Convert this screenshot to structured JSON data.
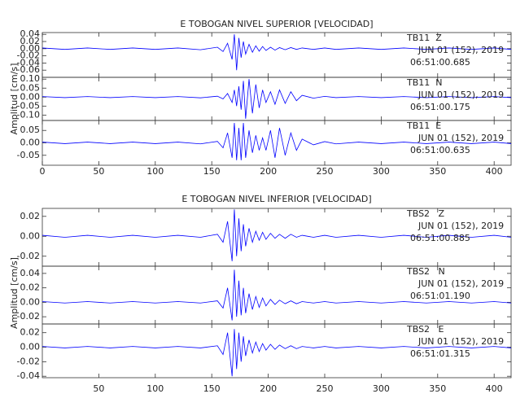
{
  "chart_data": [
    {
      "type": "line",
      "title": "E TOBOGAN NIVEL SUPERIOR [VELOCIDAD]",
      "ylabel": "Amplitud [cm/s]",
      "xlim": [
        0,
        415
      ],
      "xticks": [
        0,
        50,
        100,
        150,
        200,
        250,
        300,
        350,
        400
      ],
      "x": [
        0,
        20,
        40,
        60,
        80,
        100,
        120,
        140,
        155,
        160,
        164,
        168,
        170,
        172,
        174,
        176,
        178,
        180,
        183,
        186,
        189,
        192,
        195,
        198,
        202,
        206,
        210,
        215,
        220,
        225,
        230,
        240,
        250,
        260,
        280,
        300,
        320,
        340,
        360,
        380,
        400,
        415
      ],
      "series": [
        {
          "name": "TB11  Z",
          "date": "JUN 01 (152), 2019",
          "time": "06:51:00.685",
          "color": "#0000ff",
          "ylim": [
            -0.08,
            0.045
          ],
          "yticks": [
            0.04,
            0.02,
            {
              "value": 0,
              "label": "0.00"
            },
            -0.02,
            -0.04,
            -0.06
          ],
          "values": [
            0.002,
            -0.002,
            0.002,
            -0.002,
            0.002,
            -0.002,
            0.002,
            -0.003,
            0.004,
            -0.008,
            0.015,
            -0.03,
            0.04,
            -0.06,
            0.03,
            -0.025,
            0.02,
            -0.015,
            0.012,
            -0.01,
            0.008,
            -0.007,
            0.006,
            -0.005,
            0.004,
            -0.004,
            0.003,
            -0.003,
            0.003,
            -0.002,
            0.002,
            -0.002,
            0.002,
            -0.002,
            0.002,
            -0.002,
            0.002,
            -0.002,
            0.002,
            -0.002,
            0.002,
            -0.002
          ]
        },
        {
          "name": "TB11  N",
          "date": "JUN 01 (152), 2019",
          "time": "06:51:00.175",
          "color": "#0000ff",
          "ylim": [
            -0.13,
            0.11
          ],
          "yticks": [
            {
              "value": 0.1,
              "label": "0.10"
            },
            0.05,
            {
              "value": 0,
              "label": "0.00"
            },
            -0.05,
            {
              "value": -0.1,
              "label": "-0.10"
            }
          ],
          "values": [
            0.003,
            -0.003,
            0.003,
            -0.003,
            0.003,
            -0.003,
            0.003,
            -0.004,
            0.005,
            -0.01,
            0.02,
            -0.03,
            0.04,
            -0.05,
            0.06,
            -0.07,
            0.09,
            -0.12,
            0.1,
            -0.09,
            0.07,
            -0.06,
            0.04,
            -0.03,
            0.03,
            -0.04,
            0.04,
            -0.035,
            0.03,
            -0.02,
            0.01,
            -0.006,
            0.004,
            -0.003,
            0.003,
            -0.003,
            0.003,
            -0.003,
            0.003,
            -0.003,
            0.003,
            -0.003
          ]
        },
        {
          "name": "TB11  E",
          "date": "JUN 01 (152), 2019",
          "time": "06:51:00.635",
          "color": "#0000ff",
          "ylim": [
            -0.09,
            0.09
          ],
          "yticks": [
            0.05,
            {
              "value": 0,
              "label": "0.00"
            },
            -0.05
          ],
          "values": [
            0.003,
            -0.003,
            0.003,
            -0.003,
            0.003,
            -0.003,
            0.003,
            -0.004,
            0.006,
            -0.02,
            0.04,
            -0.06,
            0.08,
            -0.07,
            0.06,
            -0.07,
            0.08,
            -0.06,
            0.05,
            -0.04,
            0.03,
            -0.03,
            0.02,
            -0.03,
            0.05,
            -0.06,
            0.06,
            -0.05,
            0.04,
            -0.03,
            0.015,
            -0.008,
            0.005,
            -0.004,
            0.003,
            -0.003,
            0.003,
            -0.003,
            0.003,
            -0.003,
            0.003,
            -0.003
          ]
        }
      ]
    },
    {
      "type": "line",
      "title": "E TOBOGAN NIVEL INFERIOR [VELOCIDAD]",
      "ylabel": "Amplitud [cm/s]",
      "xlim": [
        0,
        415
      ],
      "xticks": [
        50,
        100,
        150,
        200,
        250,
        300,
        350,
        400
      ],
      "x": [
        0,
        20,
        40,
        60,
        80,
        100,
        120,
        140,
        155,
        160,
        164,
        168,
        170,
        172,
        174,
        176,
        178,
        180,
        183,
        186,
        189,
        192,
        195,
        198,
        202,
        206,
        210,
        215,
        220,
        225,
        230,
        240,
        250,
        260,
        280,
        300,
        320,
        340,
        360,
        380,
        400,
        415
      ],
      "series": [
        {
          "name": "TBS2   Z",
          "date": "JUN 01 (152), 2019",
          "time": "06:51:00.885",
          "color": "#0000ff",
          "ylim": [
            -0.03,
            0.028
          ],
          "yticks": [
            0.02,
            {
              "value": 0,
              "label": "0.00"
            },
            -0.02
          ],
          "values": [
            0.001,
            -0.001,
            0.001,
            -0.001,
            0.001,
            -0.001,
            0.001,
            -0.001,
            0.002,
            -0.006,
            0.015,
            -0.025,
            0.027,
            -0.02,
            0.018,
            -0.015,
            0.012,
            -0.01,
            0.008,
            -0.006,
            0.005,
            -0.004,
            0.004,
            -0.003,
            0.003,
            -0.002,
            0.002,
            -0.002,
            0.002,
            -0.001,
            0.001,
            -0.001,
            0.001,
            -0.001,
            0.001,
            -0.001,
            0.001,
            -0.001,
            0.001,
            -0.001,
            0.001,
            -0.001
          ]
        },
        {
          "name": "TBS2   N",
          "date": "JUN 01 (152), 2019",
          "time": "06:51:01.190",
          "color": "#0000ff",
          "ylim": [
            -0.03,
            0.05
          ],
          "yticks": [
            0.04,
            0.02,
            {
              "value": 0,
              "label": "0.00"
            },
            -0.02
          ],
          "values": [
            0.001,
            -0.001,
            0.001,
            -0.001,
            0.001,
            -0.001,
            0.001,
            -0.001,
            0.002,
            -0.008,
            0.02,
            -0.025,
            0.045,
            -0.02,
            0.03,
            -0.018,
            0.02,
            -0.015,
            0.012,
            -0.01,
            0.008,
            -0.007,
            0.006,
            -0.005,
            0.004,
            -0.003,
            0.003,
            -0.002,
            0.002,
            -0.002,
            0.001,
            -0.001,
            0.001,
            -0.001,
            0.001,
            -0.001,
            0.001,
            -0.001,
            0.001,
            -0.001,
            0.001,
            -0.001
          ]
        },
        {
          "name": "TBS2   E",
          "date": "JUN 01 (152), 2019",
          "time": "06:51:01.315",
          "color": "#0000ff",
          "ylim": [
            -0.042,
            0.032
          ],
          "yticks": [
            0.02,
            {
              "value": 0,
              "label": "0.00"
            },
            -0.02,
            -0.04
          ],
          "values": [
            0.001,
            -0.001,
            0.001,
            -0.001,
            0.001,
            -0.001,
            0.001,
            -0.001,
            0.002,
            -0.01,
            0.02,
            -0.04,
            0.025,
            -0.03,
            0.02,
            -0.02,
            0.015,
            -0.012,
            0.01,
            -0.008,
            0.007,
            -0.006,
            0.005,
            -0.004,
            0.004,
            -0.003,
            0.003,
            -0.002,
            0.002,
            -0.002,
            0.001,
            -0.001,
            0.001,
            -0.001,
            0.001,
            -0.001,
            0.001,
            -0.001,
            0.001,
            -0.001,
            0.001,
            -0.001
          ]
        }
      ]
    }
  ]
}
